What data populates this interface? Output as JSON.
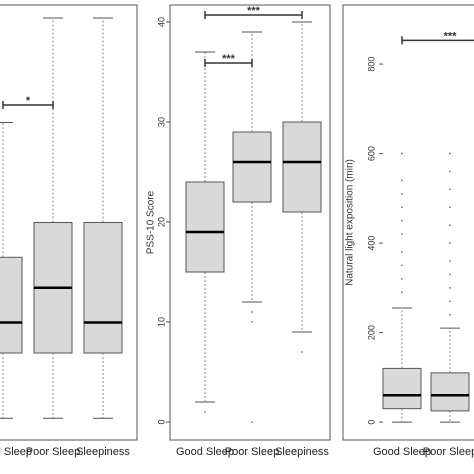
{
  "chart_data": [
    {
      "type": "box",
      "categories": [
        "Good Sleep",
        "Poor Sleep",
        "Sleepiness"
      ],
      "ylim": [
        0,
        100
      ],
      "boxes": [
        {
          "whisker_low": 5,
          "q1": 20,
          "median": 27,
          "q3": 42,
          "whisker_high": 73,
          "outliers": []
        },
        {
          "whisker_low": 5,
          "q1": 20,
          "median": 35,
          "q3": 50,
          "whisker_high": 97,
          "outliers": []
        },
        {
          "whisker_low": 5,
          "q1": 20,
          "median": 27,
          "q3": 50,
          "whisker_high": 97,
          "outliers": []
        }
      ],
      "annotations": [
        {
          "text": "*",
          "from": 0,
          "to": 1,
          "y": 77
        }
      ]
    },
    {
      "type": "box",
      "ylabel": "PSS-10 Score",
      "categories": [
        "Good Sleep",
        "Poor Sleep",
        "Sleepiness"
      ],
      "ylim": [
        -1.8,
        41.7
      ],
      "yticks": [
        0,
        10,
        20,
        30,
        40
      ],
      "boxes": [
        {
          "whisker_low": 2,
          "q1": 15,
          "median": 19,
          "q3": 24,
          "whisker_high": 37,
          "outliers": [
            1
          ]
        },
        {
          "whisker_low": 12,
          "q1": 22,
          "median": 26,
          "q3": 29,
          "whisker_high": 39,
          "outliers": [
            11,
            10,
            0
          ]
        },
        {
          "whisker_low": 9,
          "q1": 21,
          "median": 26,
          "q3": 30,
          "whisker_high": 40,
          "outliers": [
            7
          ]
        }
      ],
      "annotations": [
        {
          "text": "***",
          "from": 0,
          "to": 1,
          "y": 35.9
        },
        {
          "text": "***",
          "from": 0,
          "to": 2,
          "y": 40.7
        }
      ]
    },
    {
      "type": "box",
      "ylabel": "Natural light exposition (min)",
      "categories": [
        "Good Sleep",
        "Poor Sleep"
      ],
      "ylim": [
        -40,
        932
      ],
      "yticks": [
        0,
        200,
        400,
        600,
        800
      ],
      "boxes": [
        {
          "whisker_low": 0,
          "q1": 30,
          "median": 60,
          "q3": 120,
          "whisker_high": 255,
          "outliers": [
            290,
            320,
            350,
            380,
            420,
            450,
            480,
            510,
            540,
            600
          ]
        },
        {
          "whisker_low": 0,
          "q1": 25,
          "median": 60,
          "q3": 110,
          "whisker_high": 210,
          "outliers": [
            240,
            270,
            300,
            330,
            360,
            400,
            440,
            480,
            520,
            560,
            600
          ]
        }
      ],
      "annotations": [
        {
          "text": "***",
          "from": 0,
          "to": 2,
          "y": 853
        }
      ]
    }
  ]
}
